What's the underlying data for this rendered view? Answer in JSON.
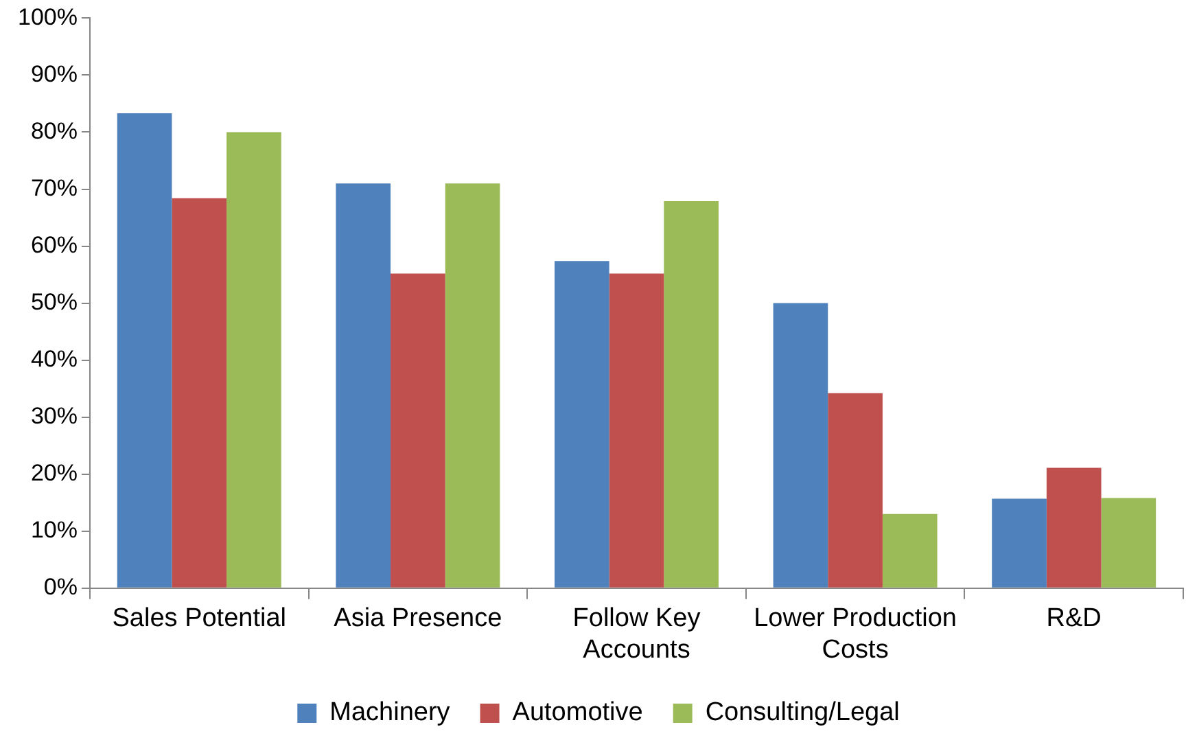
{
  "chart_data": {
    "type": "bar",
    "categories": [
      "Sales Potential",
      "Asia Presence",
      "Follow Key Accounts",
      "Lower Production Costs",
      "R&D"
    ],
    "series": [
      {
        "name": "Machinery",
        "color": "#4f81bd",
        "values": [
          83.3,
          71,
          57.4,
          50,
          15.7
        ]
      },
      {
        "name": "Automotive",
        "color": "#c0504d",
        "values": [
          68.4,
          55.2,
          55.2,
          34.2,
          21.1
        ]
      },
      {
        "name": "Consulting/Legal",
        "color": "#9bbb59",
        "values": [
          80,
          71,
          67.9,
          13,
          15.8
        ]
      }
    ],
    "ylim": [
      0,
      100
    ],
    "yticks": [
      {
        "value": 0,
        "label": "0%"
      },
      {
        "value": 10,
        "label": "10%"
      },
      {
        "value": 20,
        "label": "20%"
      },
      {
        "value": 30,
        "label": "30%"
      },
      {
        "value": 40,
        "label": "40%"
      },
      {
        "value": 50,
        "label": "50%"
      },
      {
        "value": 60,
        "label": "60%"
      },
      {
        "value": 70,
        "label": "70%"
      },
      {
        "value": 80,
        "label": "80%"
      },
      {
        "value": 90,
        "label": "90%"
      },
      {
        "value": 100,
        "label": "100%"
      }
    ],
    "grid": false,
    "legend": "bottom"
  }
}
